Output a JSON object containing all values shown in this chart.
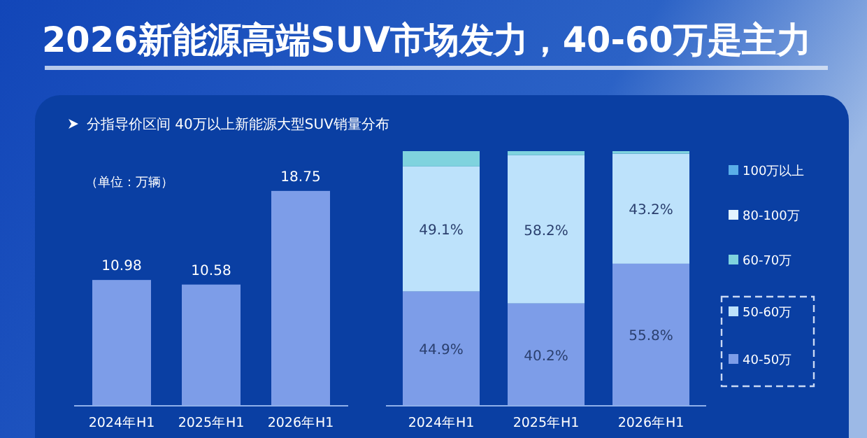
{
  "chart_data": [
    {
      "type": "bar",
      "title": "2026新能源高端SUV市场发力，40-60万是主力",
      "subtitle": "分指导价区间 40万以上新能源大型SUV销量分布",
      "annotations": [
        "（单位：万辆）"
      ],
      "categories": [
        "2024年H1",
        "2025年H1",
        "2026年H1"
      ],
      "values": [
        10.98,
        10.58,
        18.75
      ],
      "color": "#7d9de8",
      "data_labels": true,
      "tick_labels": "x"
    },
    {
      "type": "bar",
      "stacked": true,
      "categories": [
        "2024年H1",
        "2025年H1",
        "2026年H1"
      ],
      "ylim": [
        0,
        100
      ],
      "tick_labels": "x",
      "legend": "right",
      "series": [
        {
          "name": "40-50万",
          "color": "#7d9de8",
          "values": [
            44.9,
            40.2,
            55.8
          ],
          "value_labels": [
            "44.9%",
            "40.2%",
            "55.8%"
          ]
        },
        {
          "name": "50-60万",
          "color": "#bde2fb",
          "values": [
            49.1,
            58.2,
            43.2
          ],
          "value_labels": [
            "49.1%",
            "58.2%",
            "43.2%"
          ]
        },
        {
          "name": "60-70万",
          "color": "#7fd3de",
          "values": [
            6.0,
            1.6,
            1.0
          ]
        },
        {
          "name": "80-100万",
          "color": "#e4f4ff",
          "values": [
            0,
            0,
            0
          ]
        },
        {
          "name": "100万以上",
          "color": "#5aaee8",
          "values": [
            0,
            0,
            0
          ]
        }
      ]
    }
  ]
}
